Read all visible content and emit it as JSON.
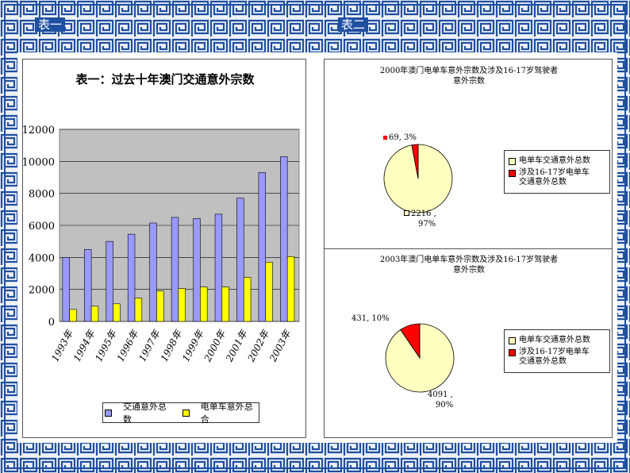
{
  "headers": {
    "left": "表一",
    "right": "表二"
  },
  "chart_data": [
    {
      "type": "bar",
      "title": "表一：过去十年澳门交通意外宗数",
      "categories": [
        "1993年",
        "1994年",
        "1995年",
        "1996年",
        "1997年",
        "1998年",
        "1999年",
        "2000年",
        "2001年",
        "2002年",
        "2003年"
      ],
      "series": [
        {
          "name": "交通意外总数",
          "color": "#9999ff",
          "values": [
            4000,
            4500,
            5000,
            5450,
            6150,
            6500,
            6430,
            6700,
            7700,
            9300,
            10300
          ]
        },
        {
          "name": "电单车意外总合",
          "color": "#ffff00",
          "values": [
            750,
            950,
            1100,
            1450,
            1900,
            2050,
            2150,
            2150,
            2750,
            3700,
            4050
          ]
        }
      ],
      "ylim": [
        0,
        12000
      ],
      "yticks": [
        "0",
        "2000",
        "4000",
        "6000",
        "8000",
        "10000",
        "12000"
      ],
      "grid": true,
      "plot_background": "#c0c0c0",
      "legend_position": "bottom"
    },
    {
      "type": "pie",
      "title_line1": "2000年澳门电单车意外宗数及涉及16-17岁驾驶者",
      "title_line2": "意外宗数",
      "slices": [
        {
          "legend": "电单车交通意外总数",
          "value": 2216,
          "pct": 97,
          "label1": "2216 ,",
          "label2": "97%",
          "color": "#ffffc0"
        },
        {
          "legend1": "涉及16-17岁电单车",
          "legend2": "交通意外总数",
          "value": 69,
          "pct": 3,
          "label": "69, 3%",
          "color": "#ff0000"
        }
      ],
      "legend_position": "right"
    },
    {
      "type": "pie",
      "title_line1": "2003年澳门电单车意外宗数及涉及16-17岁驾驶者",
      "title_line2": "意外宗数",
      "slices": [
        {
          "legend": "电单车交通意外总数",
          "value": 4091,
          "pct": 90,
          "label1": "4091 ,",
          "label2": "90%",
          "color": "#ffffc0"
        },
        {
          "legend1": "涉及16-17岁电单车",
          "legend2": "交通意外总数",
          "value": 431,
          "pct": 10,
          "label": "431, 10%",
          "color": "#ff0000"
        }
      ],
      "legend_position": "right"
    }
  ]
}
